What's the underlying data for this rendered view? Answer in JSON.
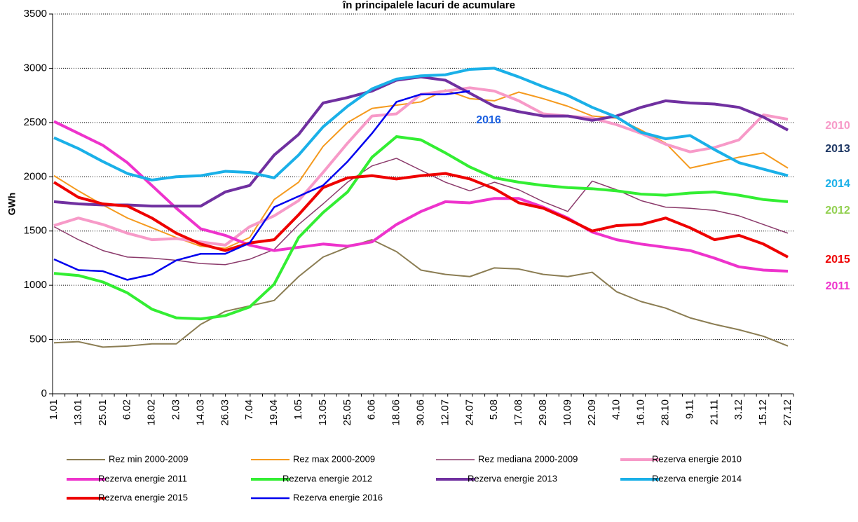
{
  "chart_data": {
    "type": "line",
    "title": "în principalele lacuri de acumulare",
    "y_label": "GWh",
    "categories": [
      "1.01",
      "13.01",
      "25.01",
      "6.02",
      "18.02",
      "2.03",
      "14.03",
      "26.03",
      "7.04",
      "19.04",
      "1.05",
      "13.05",
      "25.05",
      "6.06",
      "18.06",
      "30.06",
      "12.07",
      "24.07",
      "5.08",
      "17.08",
      "29.08",
      "10.09",
      "22.09",
      "4.10",
      "16.10",
      "28.10",
      "9.11",
      "21.11",
      "3.12",
      "15.12",
      "27.12"
    ],
    "ylim": [
      0,
      3500
    ],
    "yticks": [
      0,
      500,
      1000,
      1500,
      2000,
      2500,
      3000,
      3500
    ],
    "grid": true,
    "series": [
      {
        "name": "Rez min 2000-2009",
        "color": "#8b7d53",
        "width": 2,
        "values": [
          470,
          480,
          430,
          440,
          460,
          460,
          640,
          760,
          810,
          860,
          1080,
          1260,
          1350,
          1420,
          1310,
          1140,
          1100,
          1080,
          1160,
          1150,
          1100,
          1080,
          1120,
          940,
          850,
          790,
          700,
          640,
          590,
          530,
          440
        ]
      },
      {
        "name": "Rez max 2000-2009",
        "color": "#f59a1e",
        "width": 2,
        "values": [
          2010,
          1870,
          1740,
          1620,
          1530,
          1440,
          1360,
          1340,
          1440,
          1790,
          1950,
          2280,
          2500,
          2630,
          2660,
          2690,
          2800,
          2720,
          2700,
          2780,
          2720,
          2650,
          2560,
          2540,
          2430,
          2310,
          2080,
          2130,
          2180,
          2220,
          2080
        ]
      },
      {
        "name": "Rez mediana 2000-2009",
        "color": "#8b3a6b",
        "width": 1.5,
        "values": [
          1540,
          1420,
          1320,
          1260,
          1250,
          1230,
          1200,
          1190,
          1240,
          1330,
          1560,
          1750,
          1950,
          2100,
          2170,
          2060,
          1950,
          1870,
          1950,
          1880,
          1770,
          1680,
          1960,
          1880,
          1780,
          1720,
          1710,
          1690,
          1640,
          1560,
          1480
        ]
      },
      {
        "name": "Rezerva energie 2010",
        "color": "#f79ac8",
        "width": 4,
        "values": [
          1550,
          1620,
          1560,
          1480,
          1420,
          1430,
          1400,
          1370,
          1540,
          1640,
          1780,
          2040,
          2310,
          2560,
          2580,
          2760,
          2790,
          2820,
          2790,
          2700,
          2580,
          2560,
          2540,
          2480,
          2400,
          2300,
          2230,
          2270,
          2340,
          2570,
          2530
        ]
      },
      {
        "name": "Rezerva energie 2011",
        "color": "#ee33cc",
        "width": 4,
        "values": [
          2510,
          2400,
          2290,
          2130,
          1920,
          1710,
          1520,
          1460,
          1370,
          1320,
          1350,
          1380,
          1360,
          1400,
          1560,
          1680,
          1770,
          1760,
          1800,
          1800,
          1720,
          1620,
          1490,
          1420,
          1380,
          1350,
          1320,
          1250,
          1170,
          1140,
          1130
        ]
      },
      {
        "name": "Rezerva energie 2012",
        "color": "#33ee33",
        "width": 4,
        "values": [
          1110,
          1090,
          1030,
          930,
          780,
          700,
          690,
          720,
          800,
          1010,
          1440,
          1670,
          1860,
          2180,
          2370,
          2340,
          2220,
          2090,
          1990,
          1950,
          1920,
          1900,
          1890,
          1870,
          1840,
          1830,
          1850,
          1860,
          1830,
          1790,
          1770
        ]
      },
      {
        "name": "Rezerva energie 2013",
        "color": "#7030a0",
        "width": 4,
        "values": [
          1770,
          1750,
          1740,
          1740,
          1730,
          1730,
          1730,
          1860,
          1920,
          2200,
          2390,
          2680,
          2730,
          2790,
          2890,
          2920,
          2890,
          2770,
          2650,
          2600,
          2560,
          2560,
          2520,
          2560,
          2640,
          2700,
          2680,
          2670,
          2640,
          2550,
          2430
        ]
      },
      {
        "name": "Rezerva energie 2014",
        "color": "#1ab0e8",
        "width": 4,
        "values": [
          2360,
          2260,
          2140,
          2030,
          1970,
          2000,
          2010,
          2050,
          2040,
          1990,
          2200,
          2460,
          2650,
          2810,
          2900,
          2930,
          2940,
          2990,
          3000,
          2920,
          2830,
          2750,
          2640,
          2550,
          2410,
          2350,
          2380,
          2250,
          2130,
          2070,
          2010
        ]
      },
      {
        "name": "Rezerva energie 2015",
        "color": "#ee0000",
        "width": 4,
        "values": [
          1950,
          1810,
          1750,
          1730,
          1620,
          1480,
          1380,
          1320,
          1390,
          1420,
          1650,
          1900,
          1990,
          2010,
          1980,
          2010,
          2030,
          1980,
          1890,
          1760,
          1710,
          1610,
          1500,
          1550,
          1560,
          1620,
          1530,
          1420,
          1460,
          1380,
          1260
        ]
      },
      {
        "name": "Rezerva energie 2016",
        "color": "#0000ee",
        "width": 2.5,
        "values": [
          1240,
          1140,
          1130,
          1050,
          1100,
          1230,
          1290,
          1290,
          1390,
          1720,
          1820,
          1920,
          2140,
          2400,
          2690,
          2760,
          2760,
          2790,
          null,
          null,
          null,
          null,
          null,
          null,
          null,
          null,
          null,
          null,
          null,
          null,
          null
        ]
      }
    ],
    "annotations": [
      {
        "text": "2010",
        "color": "#f79ac8"
      },
      {
        "text": "2013",
        "color": "#1f3864"
      },
      {
        "text": "2014",
        "color": "#1ab0e8"
      },
      {
        "text": "2012",
        "color": "#92d050"
      },
      {
        "text": "2015",
        "color": "#ee0000"
      },
      {
        "text": "2011",
        "color": "#ee33cc"
      },
      {
        "text": "2016",
        "color": "#1a5fe0"
      }
    ]
  }
}
